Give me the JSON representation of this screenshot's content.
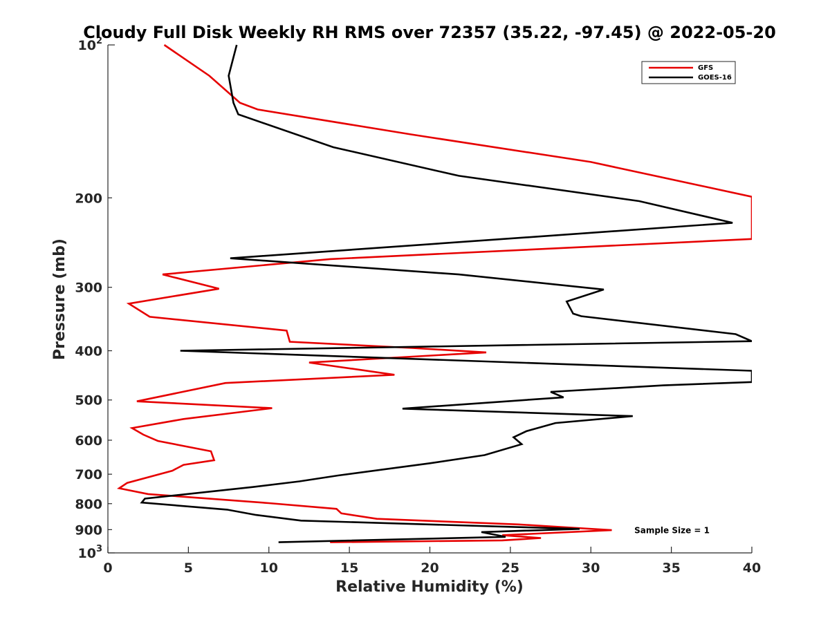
{
  "chart_data": {
    "type": "line",
    "title": "Cloudy Full Disk Weekly RH RMS over 72357 (35.22, -97.45) @ 2022-05-20",
    "xlabel": "Relative Humidity (%)",
    "ylabel": "Pressure (mb)",
    "xlim": [
      0,
      40
    ],
    "ylim": [
      100,
      1000
    ],
    "yscale": "log",
    "y_reversed": true,
    "grid": false,
    "legend_position": "top-right",
    "x_ticks": [
      "0",
      "5",
      "10",
      "15",
      "20",
      "25",
      "30",
      "35",
      "40"
    ],
    "y_ticks": [
      {
        "value": 100,
        "base": "10",
        "exp": "2"
      },
      {
        "value": 200,
        "label": "200"
      },
      {
        "value": 300,
        "label": "300"
      },
      {
        "value": 400,
        "label": "400"
      },
      {
        "value": 500,
        "label": "500"
      },
      {
        "value": 600,
        "label": "600"
      },
      {
        "value": 700,
        "label": "700"
      },
      {
        "value": 800,
        "label": "800"
      },
      {
        "value": 900,
        "label": "900"
      },
      {
        "value": 1000,
        "base": "10",
        "exp": "3"
      }
    ],
    "series": [
      {
        "name": "GFS",
        "color": "#e60000",
        "points": [
          [
            3.5,
            100
          ],
          [
            6.3,
            115
          ],
          [
            8.2,
            130
          ],
          [
            9.3,
            134
          ],
          [
            18.8,
            150
          ],
          [
            30.0,
            170
          ],
          [
            40.0,
            199
          ],
          [
            40.0,
            241
          ],
          [
            13.8,
            264
          ],
          [
            3.4,
            283
          ],
          [
            6.9,
            302
          ],
          [
            1.3,
            323
          ],
          [
            2.6,
            343
          ],
          [
            11.1,
            365
          ],
          [
            11.3,
            384
          ],
          [
            18.9,
            395
          ],
          [
            23.5,
            403
          ],
          [
            12.5,
            422
          ],
          [
            17.8,
            446
          ],
          [
            7.3,
            463
          ],
          [
            1.8,
            503
          ],
          [
            10.2,
            519
          ],
          [
            4.7,
            545
          ],
          [
            1.5,
            568
          ],
          [
            2.2,
            585
          ],
          [
            3.1,
            602
          ],
          [
            6.4,
            631
          ],
          [
            6.6,
            657
          ],
          [
            4.7,
            671
          ],
          [
            4.0,
            689
          ],
          [
            1.2,
            728
          ],
          [
            0.7,
            746
          ],
          [
            2.5,
            766
          ],
          [
            10.0,
            798
          ],
          [
            14.2,
            819
          ],
          [
            14.5,
            836
          ],
          [
            16.7,
            857
          ],
          [
            25.5,
            879
          ],
          [
            31.3,
            902
          ],
          [
            24.5,
            923
          ],
          [
            26.9,
            935
          ],
          [
            24.5,
            945
          ],
          [
            13.8,
            953
          ]
        ]
      },
      {
        "name": "GOES-16",
        "color": "#000000",
        "points": [
          [
            8.0,
            100
          ],
          [
            7.5,
            115
          ],
          [
            7.8,
            130
          ],
          [
            8.1,
            137
          ],
          [
            14.0,
            159
          ],
          [
            21.8,
            181
          ],
          [
            33.0,
            203
          ],
          [
            38.8,
            224
          ],
          [
            7.6,
            263
          ],
          [
            21.8,
            283
          ],
          [
            30.8,
            303
          ],
          [
            28.5,
            320
          ],
          [
            28.9,
            338
          ],
          [
            29.4,
            342
          ],
          [
            39.0,
            371
          ],
          [
            40.0,
            383
          ],
          [
            4.5,
            400
          ],
          [
            40.0,
            438
          ],
          [
            40.0,
            461
          ],
          [
            34.5,
            468
          ],
          [
            27.5,
            482
          ],
          [
            28.3,
            494
          ],
          [
            18.3,
            520
          ],
          [
            32.6,
            538
          ],
          [
            27.8,
            555
          ],
          [
            26.0,
            576
          ],
          [
            25.2,
            592
          ],
          [
            25.7,
            611
          ],
          [
            23.4,
            642
          ],
          [
            20.0,
            666
          ],
          [
            14.3,
            704
          ],
          [
            11.9,
            723
          ],
          [
            9.0,
            742
          ],
          [
            2.3,
            782
          ],
          [
            2.1,
            796
          ],
          [
            7.4,
            822
          ],
          [
            9.2,
            842
          ],
          [
            12.0,
            864
          ],
          [
            29.3,
            897
          ],
          [
            23.2,
            910
          ],
          [
            24.7,
            930
          ],
          [
            10.6,
            953
          ]
        ]
      }
    ],
    "annotations": [
      {
        "text": "Sample Size = 1",
        "x": 32.7,
        "y": 900
      }
    ]
  }
}
